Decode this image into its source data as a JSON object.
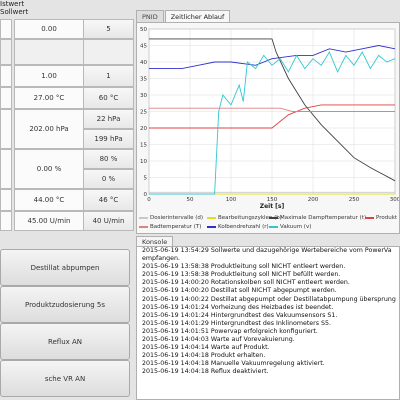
{
  "table": {
    "col_istwert": "Istwert",
    "col_sollwert": "Sollwert",
    "rows": [
      {
        "ist": "0.00",
        "soll": "5"
      },
      {
        "ist": "1.00",
        "soll": "1"
      },
      {
        "ist": "27.00 °C",
        "soll": "60 °C"
      },
      {
        "ist": "202.00 hPa",
        "soll_a": "22 hPa",
        "soll_b": "199 hPa"
      },
      {
        "ist": "0.00 %",
        "soll_a": "80 %",
        "soll_b": "0 %"
      },
      {
        "ist": "44.00 °C",
        "soll": "46 °C"
      },
      {
        "ist": "45.00 U/min",
        "soll": "40 U/min"
      }
    ]
  },
  "buttons": {
    "distillat": "Destillat abpumpen",
    "produktzudosierung": "Produktzudosierung 5s",
    "reflux": "Reflux AN",
    "vakuum": "sche VR AN"
  },
  "tabs": {
    "pnid": "PNID",
    "zeitlicher": "Zeitlicher Ablauf"
  },
  "chart_data": {
    "type": "line",
    "xlabel": "Zeit [s]",
    "xlim": [
      0,
      300
    ],
    "ylim": [
      0,
      50
    ],
    "xticks": [
      "0",
      "50",
      "100",
      "150",
      "200",
      "250",
      "300"
    ],
    "yticks": [
      "0",
      "5",
      "10",
      "15",
      "20",
      "25",
      "30",
      "35",
      "40",
      "45",
      "50"
    ],
    "legend_position": "bottom",
    "series": [
      {
        "name": "Dosierintervalle (d)",
        "color": "#c8c8c8",
        "x": [
          0,
          300
        ],
        "values": [
          0.5,
          0.5
        ]
      },
      {
        "name": "Bearbeitungszyklen (b)",
        "color": "#e0e020",
        "x": [
          0,
          300
        ],
        "values": [
          0,
          0
        ]
      },
      {
        "name": "Maximale Dampftemperatur (t)",
        "color": "#404040",
        "x": [
          0,
          150,
          155,
          170,
          190,
          210,
          230,
          250,
          270,
          300
        ],
        "values": [
          47,
          47,
          43,
          35,
          27,
          21,
          16,
          11,
          8,
          4
        ]
      },
      {
        "name": "Produkt",
        "color": "#e04040",
        "x": [
          0,
          100,
          150,
          160,
          170,
          190,
          210,
          300
        ],
        "values": [
          20,
          20,
          20,
          22,
          24,
          26,
          27,
          27
        ]
      },
      {
        "name": "Badtemperatur (T)",
        "color": "#e08080",
        "x": [
          0,
          160,
          175,
          300
        ],
        "values": [
          26,
          26,
          25,
          25
        ]
      },
      {
        "name": "Kolbendrehzahl (r)",
        "color": "#3030d0",
        "x": [
          0,
          40,
          60,
          80,
          100,
          130,
          150,
          180,
          200,
          220,
          240,
          260,
          280,
          300
        ],
        "values": [
          38,
          38,
          39,
          40,
          40,
          39,
          41,
          42,
          42,
          44,
          43,
          44,
          45,
          44
        ]
      },
      {
        "name": "Vakuum (v)",
        "color": "#30c8d0",
        "x": [
          0,
          80,
          85,
          90,
          100,
          110,
          115,
          120,
          130,
          140,
          150,
          160,
          170,
          180,
          190,
          200,
          210,
          220,
          230,
          240,
          250,
          260,
          270,
          280,
          290,
          300
        ],
        "values": [
          0,
          0,
          25,
          30,
          27,
          33,
          28,
          40,
          38,
          42,
          39,
          41,
          37,
          42,
          38,
          41,
          39,
          43,
          37,
          42,
          39,
          43,
          38,
          42,
          40,
          41
        ]
      }
    ]
  },
  "console": {
    "tab": "Konsole",
    "lines": [
      "2015-06-19 13:54:29    Sollwerte und dazugehörige Wertebereiche vom PowerVa",
      "empfangen.",
      "2015-06-19 13:58:38    Produktleitung soll NICHT entleert werden.",
      "2015-06-19 13:58:38    Produktleitung soll NICHT befüllt werden.",
      "2015-06-19 14:00:20    Rotationskolben soll NICHT entleert werden.",
      "2015-06-19 14:00:20    Destillat soll NICHT abgepumpt werden.",
      "2015-06-19 14:00:22    Destillat abgepumpt oder Destillatabpumpung übersprung",
      "2015-06-19 14:01:24    Vorheizung des Heizbades ist beendet.",
      "2015-06-19 14:01:24    Hintergrundtest des Vakuumsensors S1.",
      "2015-06-19 14:01:29    Hintergrundtest des Inklinometers S5.",
      "2015-06-19 14:01:51    Powervap erfolgreich konfiguriert.",
      "2015-06-19 14:04:03    Warte auf Vorevakuierung.",
      "2015-06-19 14:04:14    Warte auf Produkt.",
      "2015-06-19 14:04:18    Produkt erhalten.",
      "2015-06-19 14:04:18    Manuelle Vakuumregelung aktiviert.",
      "2015-06-19 14:04:18    Reflux deaktiviert."
    ]
  }
}
